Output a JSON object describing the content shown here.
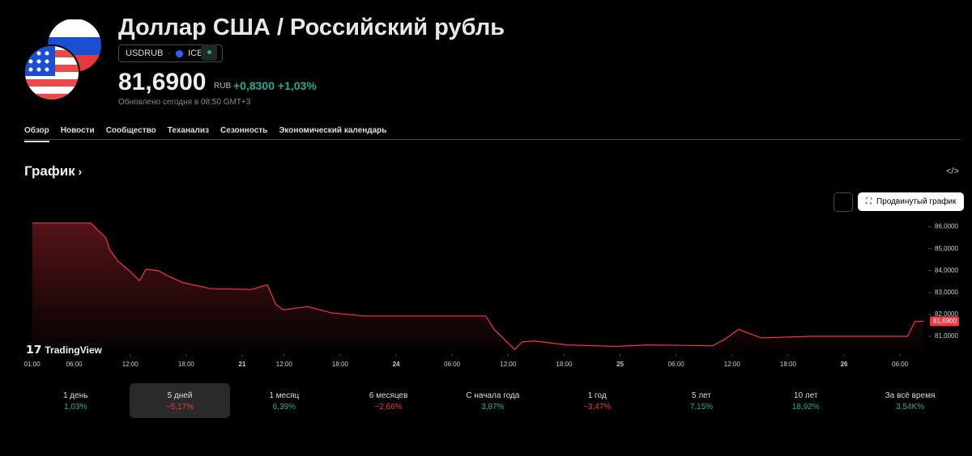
{
  "header": {
    "title": "Доллар США / Российский рубль",
    "symbol": "USDRUB",
    "exchange": "ICE",
    "price": "81,6900",
    "currency": "RUB",
    "change": "+0,8300",
    "change_percent": "+1,03%",
    "updated": "Обновлено сегодня в 08:50 GMT+3"
  },
  "tabs": [
    "Обзор",
    "Новости",
    "Сообщество",
    "Теханализ",
    "Сезонность",
    "Экономический календарь"
  ],
  "section": {
    "title": "График",
    "advanced_button": "Продвинутый график",
    "watermark": "TradingView"
  },
  "chart_data": {
    "type": "area",
    "color": "#f23645",
    "x": [
      0,
      6.3,
      7,
      7.9,
      8.3,
      9.2,
      10.5,
      11.5,
      12.2,
      13.5,
      14.8,
      16.1,
      19.1,
      23.5,
      25.2,
      26.1,
      26.9,
      29.5,
      32.1,
      35.6,
      48.6,
      49.5,
      51.7,
      52.5,
      53.8,
      57.3,
      62.5,
      66,
      72.9,
      74.2,
      75.7,
      78.1,
      83.4,
      87.7,
      93.8,
      94.6,
      95.5
    ],
    "values": [
      86.17,
      86.17,
      85.86,
      85.5,
      84.96,
      84.43,
      83.96,
      83.54,
      84.07,
      84.0,
      83.71,
      83.46,
      83.18,
      83.14,
      83.36,
      82.46,
      82.21,
      82.36,
      82.07,
      81.93,
      81.93,
      81.32,
      80.4,
      80.75,
      80.79,
      80.61,
      80.54,
      80.61,
      80.57,
      80.86,
      81.32,
      80.93,
      81.0,
      81.0,
      81.0,
      81.68,
      81.69
    ],
    "xlim": [
      -0.5,
      95.5
    ],
    "ylim": [
      80.3,
      86.5
    ],
    "xticks": [
      {
        "value": 0,
        "label": "01:00"
      },
      {
        "value": 4.5,
        "label": "06:00"
      },
      {
        "value": 10.5,
        "label": "12:00"
      },
      {
        "value": 16.5,
        "label": "18:00"
      },
      {
        "value": 22.5,
        "label": "21"
      },
      {
        "value": 27,
        "label": "12:00"
      },
      {
        "value": 33,
        "label": "18:00"
      },
      {
        "value": 39,
        "label": "24"
      },
      {
        "value": 45,
        "label": "06:00"
      },
      {
        "value": 51,
        "label": "12:00"
      },
      {
        "value": 57,
        "label": "18:00"
      },
      {
        "value": 63,
        "label": "25"
      },
      {
        "value": 69,
        "label": "06:00"
      },
      {
        "value": 75,
        "label": "12:00"
      },
      {
        "value": 81,
        "label": "18:00"
      },
      {
        "value": 87,
        "label": "26"
      },
      {
        "value": 93,
        "label": "06:00"
      }
    ],
    "yticks": [
      {
        "value": 81,
        "label": "81,0000"
      },
      {
        "value": 82,
        "label": "82,0000"
      },
      {
        "value": 83,
        "label": "83,0000"
      },
      {
        "value": 84,
        "label": "84,0000"
      },
      {
        "value": 85,
        "label": "85,0000"
      },
      {
        "value": 86,
        "label": "86,0000"
      }
    ],
    "price_marker": {
      "value": 81.69,
      "label": "81,6900"
    }
  },
  "periods": [
    {
      "name": "1 день",
      "change": "1,03%",
      "color": "#22ab94"
    },
    {
      "name": "5 дней",
      "change": "−5,17%",
      "color": "#f23645",
      "selected": true
    },
    {
      "name": "1 месяц",
      "change": "6,39%",
      "color": "#22ab94"
    },
    {
      "name": "6 месяцев",
      "change": "−2,66%",
      "color": "#f23645"
    },
    {
      "name": "С начала года",
      "change": "3,87%",
      "color": "#22ab94"
    },
    {
      "name": "1 год",
      "change": "−3,47%",
      "color": "#f23645"
    },
    {
      "name": "5 лет",
      "change": "7,15%",
      "color": "#22ab94"
    },
    {
      "name": "10 лет",
      "change": "18,92%",
      "color": "#22ab94"
    },
    {
      "name": "За всё время",
      "change": "3,54K%",
      "color": "#22ab94"
    }
  ]
}
